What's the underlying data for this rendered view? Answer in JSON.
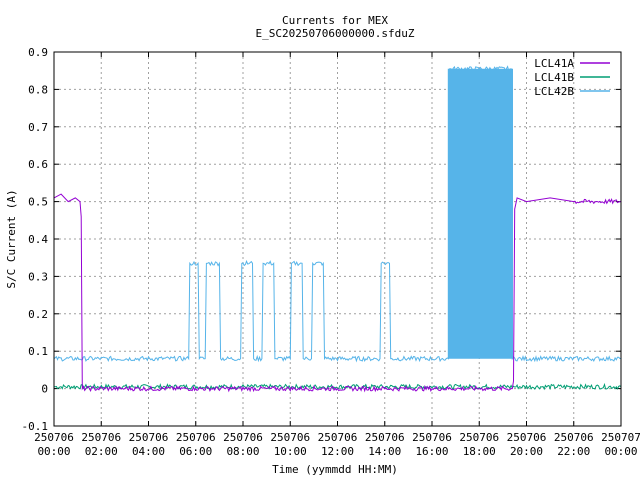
{
  "chart_data": {
    "type": "line",
    "title": "Currents for MEX",
    "subtitle": "E_SC20250706000000.sfduZ",
    "xlabel": "Time (yymmdd HH:MM)",
    "ylabel": "S/C Current (A)",
    "xlim": [
      0,
      24
    ],
    "ylim": [
      -0.1,
      0.9
    ],
    "grid": true,
    "legend_position": "top-right",
    "x_ticks": [
      {
        "x": 0,
        "date": "250706",
        "time": "00:00"
      },
      {
        "x": 2,
        "date": "250706",
        "time": "02:00"
      },
      {
        "x": 4,
        "date": "250706",
        "time": "04:00"
      },
      {
        "x": 6,
        "date": "250706",
        "time": "06:00"
      },
      {
        "x": 8,
        "date": "250706",
        "time": "08:00"
      },
      {
        "x": 10,
        "date": "250706",
        "time": "10:00"
      },
      {
        "x": 12,
        "date": "250706",
        "time": "12:00"
      },
      {
        "x": 14,
        "date": "250706",
        "time": "14:00"
      },
      {
        "x": 16,
        "date": "250706",
        "time": "16:00"
      },
      {
        "x": 18,
        "date": "250706",
        "time": "18:00"
      },
      {
        "x": 20,
        "date": "250706",
        "time": "20:00"
      },
      {
        "x": 22,
        "date": "250706",
        "time": "22:00"
      },
      {
        "x": 24,
        "date": "250707",
        "time": "00:00"
      }
    ],
    "y_ticks": [
      "-0.1",
      "0",
      "0.1",
      "0.2",
      "0.3",
      "0.4",
      "0.5",
      "0.6",
      "0.7",
      "0.8",
      "0.9"
    ],
    "series": [
      {
        "name": "LCL41A",
        "color": "#9400d3",
        "x": [
          0,
          0.3,
          0.6,
          0.9,
          1.1,
          1.15,
          1.2,
          3,
          6,
          9,
          12,
          15,
          18,
          19.4,
          19.45,
          19.5,
          19.6,
          20,
          21,
          22,
          23,
          24
        ],
        "y": [
          0.51,
          0.52,
          0.5,
          0.51,
          0.5,
          0.46,
          0.0,
          0.0,
          0.0,
          0.0,
          0.0,
          0.0,
          0.0,
          0.0,
          0.02,
          0.48,
          0.51,
          0.5,
          0.51,
          0.5,
          0.5,
          0.5
        ]
      },
      {
        "name": "LCL41B",
        "color": "#009e73",
        "x": [
          0,
          24
        ],
        "y": [
          0.005,
          0.005
        ]
      },
      {
        "name": "LCL42B",
        "color": "#56b4e9",
        "x": [
          0,
          5.7,
          5.75,
          6.1,
          6.15,
          6.4,
          6.45,
          7.0,
          7.05,
          7.9,
          7.95,
          8.4,
          8.45,
          8.8,
          8.85,
          9.3,
          9.35,
          10.0,
          10.05,
          10.5,
          10.55,
          10.9,
          10.95,
          11.4,
          11.45,
          13.8,
          13.85,
          14.2,
          14.25,
          16.7,
          16.75,
          19.35,
          19.4,
          24
        ],
        "y": [
          0.08,
          0.08,
          0.335,
          0.335,
          0.08,
          0.08,
          0.335,
          0.335,
          0.08,
          0.08,
          0.335,
          0.335,
          0.08,
          0.08,
          0.335,
          0.335,
          0.08,
          0.08,
          0.335,
          0.335,
          0.08,
          0.08,
          0.335,
          0.335,
          0.08,
          0.08,
          0.335,
          0.335,
          0.08,
          0.08,
          0.855,
          0.855,
          0.08,
          0.08
        ]
      }
    ],
    "dense_band": {
      "series": "LCL42B",
      "from": 16.7,
      "to": 19.4,
      "low": 0.08,
      "high": 0.855
    }
  }
}
